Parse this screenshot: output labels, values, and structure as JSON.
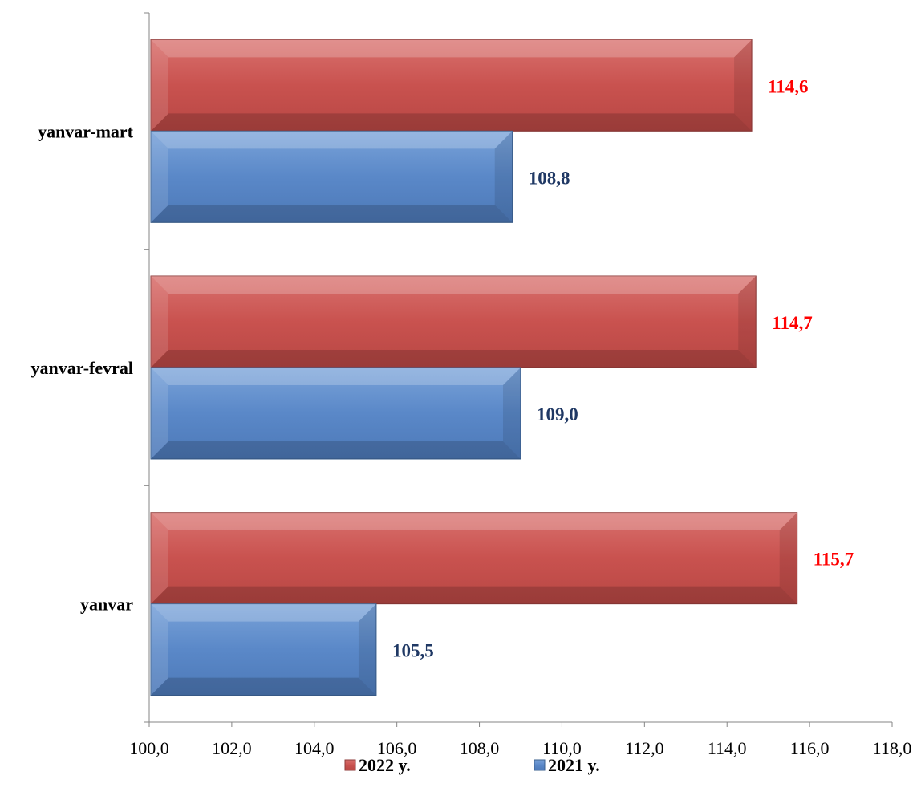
{
  "chart_data": {
    "type": "bar",
    "orientation": "horizontal",
    "categories": [
      "yanvar",
      "yanvar-fevral",
      "yanvar-mart"
    ],
    "series": [
      {
        "name": "2022 y.",
        "values": [
          115.7,
          114.7,
          114.6
        ],
        "color": "#c0504d",
        "label_color": "#ff0000"
      },
      {
        "name": "2021 y.",
        "values": [
          105.5,
          109.0,
          108.8
        ],
        "color": "#4f81bd",
        "label_color": "#1f3864"
      }
    ],
    "data_labels": {
      "2022 y.": [
        "115,7",
        "114,7",
        "114,6"
      ],
      "2021 y.": [
        "105,5",
        "109,0",
        "108,8"
      ]
    },
    "xlim": [
      100.0,
      118.0
    ],
    "x_ticks": [
      100.0,
      102.0,
      104.0,
      106.0,
      108.0,
      110.0,
      112.0,
      114.0,
      116.0,
      118.0
    ],
    "x_tick_labels": [
      "100,0",
      "102,0",
      "104,0",
      "106,0",
      "108,0",
      "110,0",
      "112,0",
      "114,0",
      "116,0",
      "118,0"
    ],
    "title": "",
    "xlabel": "",
    "ylabel": "",
    "grid": false,
    "legend_position": "bottom"
  }
}
